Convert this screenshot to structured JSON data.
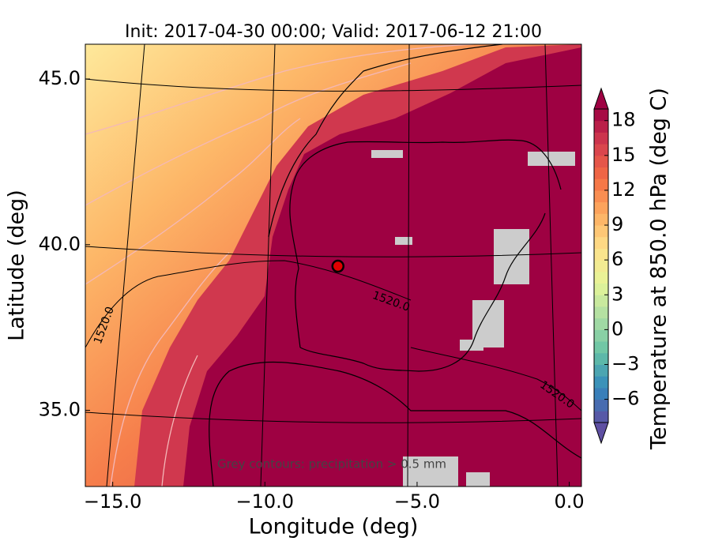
{
  "chart_data": {
    "type": "map",
    "title": "Init: 2017-04-30 00:00; Valid: 2017-06-12 21:00",
    "x_label": "Longitude (deg)",
    "y_label": "Latitude (deg)",
    "xlim": [
      -15.9,
      0.4
    ],
    "ylim": [
      32.7,
      46.05
    ],
    "xticks": [
      {
        "value": -15,
        "label": "−15.0"
      },
      {
        "value": -10,
        "label": "−10.0"
      },
      {
        "value": -5,
        "label": "−5.0"
      },
      {
        "value": 0,
        "label": "0.0"
      }
    ],
    "yticks": [
      {
        "value": 35,
        "label": "35.0"
      },
      {
        "value": 40,
        "label": "40.0"
      },
      {
        "value": 45,
        "label": "45.0"
      }
    ],
    "colorbar": {
      "label": "Temperature at 850.0 hPa (deg C)",
      "clim": [
        -8,
        19
      ],
      "ticks": [
        {
          "value": -6,
          "label": "−6"
        },
        {
          "value": -3,
          "label": "−3"
        },
        0,
        3,
        6,
        9,
        12,
        15,
        18
      ]
    },
    "annotation": "Grey contours: precipitation > 0.5 mm",
    "contour_labels": [
      "1520.0",
      "1520.0",
      "1520.0"
    ],
    "marker": {
      "x": -7.6,
      "y": 39.35,
      "color": "#e00000"
    }
  }
}
